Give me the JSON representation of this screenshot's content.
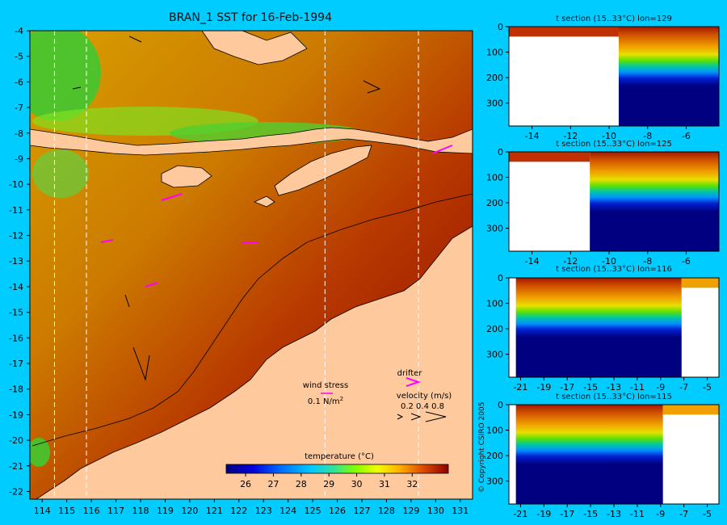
{
  "title": "BRAN_1 SST for 16-Feb-1994",
  "copyright": "© Copyright CSIRO 2005",
  "colors": {
    "background": "#00ccff",
    "land": "#ffc99e",
    "mask": "#ffffff"
  },
  "chart_data": [
    {
      "type": "heatmap",
      "title": "BRAN_1 SST for 16-Feb-1994",
      "x_ticks": [
        114,
        115,
        116,
        117,
        118,
        119,
        120,
        121,
        122,
        123,
        124,
        125,
        126,
        127,
        128,
        129,
        130,
        131
      ],
      "y_ticks": [
        -4,
        -5,
        -6,
        -7,
        -8,
        -9,
        -10,
        -11,
        -12,
        -13,
        -14,
        -15,
        -16,
        -17,
        -18,
        -19,
        -20,
        -21,
        -22
      ],
      "xlim": [
        113.5,
        131.5
      ],
      "ylim": [
        -22.3,
        -4
      ],
      "colorbar": {
        "label": "temperature (°C)",
        "ticks": [
          26,
          27,
          28,
          29,
          30,
          31,
          32
        ],
        "range": [
          25.3,
          33.3
        ]
      },
      "section_lines_lon": [
        114.5,
        115.8,
        125.5,
        129.3
      ],
      "legend": {
        "wind_stress_label": "wind stress",
        "wind_stress_value": "0.1 N/m",
        "wind_stress_unit_sup": "2",
        "drifter_label": "drifter",
        "velocity_label": "velocity (m/s)",
        "velocity_values": "0.2 0.4 0.8"
      }
    },
    {
      "type": "heatmap",
      "title": "t section (15..33°C) lon=129",
      "x_ticks": [
        -14,
        -12,
        -10,
        -8,
        -6
      ],
      "xlim": [
        -15.2,
        -4.3
      ],
      "y_ticks": [
        0,
        100,
        200,
        300
      ],
      "ylim": [
        0,
        390
      ],
      "coast_lat": -9.5
    },
    {
      "type": "heatmap",
      "title": "t section (15..33°C) lon=125",
      "x_ticks": [
        -14,
        -12,
        -10,
        -8,
        -6
      ],
      "xlim": [
        -15.2,
        -4.3
      ],
      "y_ticks": [
        0,
        100,
        200,
        300
      ],
      "ylim": [
        0,
        390
      ],
      "coast_lat": -11.0
    },
    {
      "type": "heatmap",
      "title": "t section (15..33°C) lon=116",
      "x_ticks": [
        -21,
        -19,
        -17,
        -15,
        -13,
        -11,
        -9,
        -7,
        -5
      ],
      "xlim": [
        -22,
        -4
      ],
      "y_ticks": [
        0,
        100,
        200,
        300
      ],
      "ylim": [
        0,
        390
      ],
      "coast_lat": -7.2
    },
    {
      "type": "heatmap",
      "title": "t section (15..33°C) lon=115",
      "x_ticks": [
        -21,
        -19,
        -17,
        -15,
        -13,
        -11,
        -9,
        -7,
        -5
      ],
      "xlim": [
        -22,
        -4
      ],
      "y_ticks": [
        0,
        100,
        200,
        300
      ],
      "ylim": [
        0,
        390
      ],
      "coast_lat": -8.8
    }
  ]
}
